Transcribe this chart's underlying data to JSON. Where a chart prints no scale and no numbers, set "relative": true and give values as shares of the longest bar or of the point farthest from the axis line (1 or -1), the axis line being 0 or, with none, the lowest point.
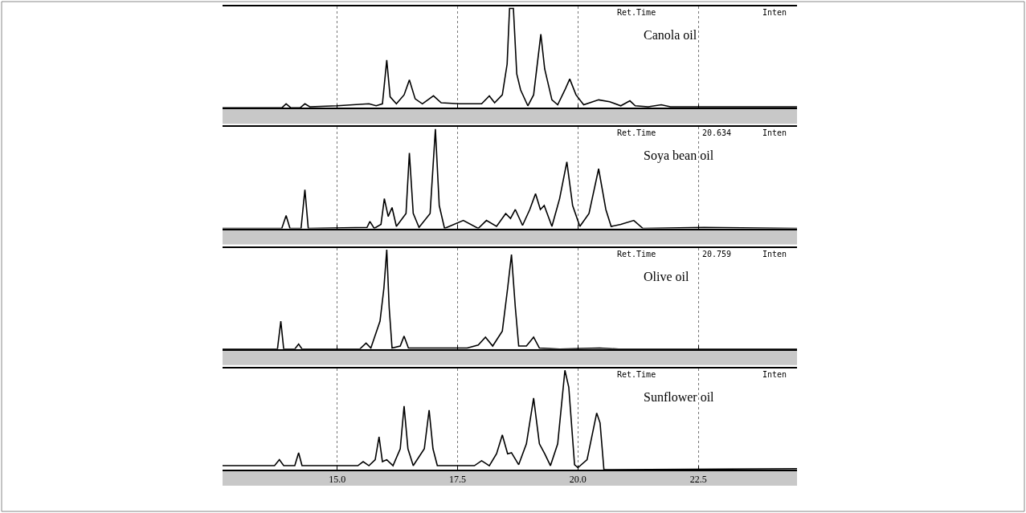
{
  "chart_data": [
    {
      "type": "line",
      "relative": true,
      "xlim": [
        12.62,
        24.55
      ],
      "xticks": [
        {
          "value": 15.0,
          "label": null
        },
        {
          "value": 17.5,
          "label": null
        },
        {
          "value": 20.0,
          "label": null
        },
        {
          "value": 22.5,
          "label": null
        }
      ],
      "tick_labels": false,
      "grid": "x",
      "legend": false,
      "marker": "none",
      "line_style": "solid",
      "annotations": [
        "Ret.Time",
        "Inten"
      ],
      "series": [
        {
          "name": "Canola oil",
          "color": "#000000",
          "x": [
            12.62,
            13.85,
            13.94,
            14.04,
            14.23,
            14.33,
            14.43,
            15.0,
            15.66,
            15.81,
            15.94,
            16.03,
            16.1,
            16.23,
            16.39,
            16.5,
            16.62,
            16.77,
            17.0,
            17.16,
            17.54,
            18.0,
            18.16,
            18.27,
            18.43,
            18.53,
            18.58,
            18.66,
            18.73,
            18.81,
            18.96,
            19.08,
            19.23,
            19.31,
            19.46,
            19.58,
            19.73,
            19.83,
            19.96,
            20.12,
            20.43,
            20.66,
            20.89,
            21.08,
            21.19,
            21.46,
            21.73,
            21.92,
            23.39,
            24.55
          ],
          "values": [
            0,
            0,
            0.04,
            0,
            0,
            0.04,
            0.01,
            0.02,
            0.04,
            0.02,
            0.04,
            0.48,
            0.11,
            0.04,
            0.13,
            0.28,
            0.09,
            0.04,
            0.12,
            0.05,
            0.04,
            0.04,
            0.12,
            0.05,
            0.13,
            0.44,
            1,
            1,
            0.34,
            0.18,
            0.02,
            0.13,
            0.74,
            0.39,
            0.08,
            0.03,
            0.18,
            0.29,
            0.13,
            0.03,
            0.08,
            0.06,
            0.02,
            0.07,
            0.02,
            0.01,
            0.03,
            0.01,
            0.01,
            0.01
          ]
        }
      ]
    },
    {
      "type": "line",
      "relative": true,
      "xlim": [
        12.62,
        24.55
      ],
      "xticks": [
        {
          "value": 15.0,
          "label": null
        },
        {
          "value": 17.5,
          "label": null
        },
        {
          "value": 20.0,
          "label": null
        },
        {
          "value": 22.5,
          "label": null
        }
      ],
      "tick_labels": false,
      "grid": "x",
      "legend": false,
      "marker": "none",
      "line_style": "solid",
      "annotations": [
        "Ret.Time",
        "20.634",
        "Inten"
      ],
      "series": [
        {
          "name": "Soya bean oil",
          "color": "#000000",
          "x": [
            12.62,
            13.85,
            13.94,
            14.02,
            14.25,
            14.33,
            14.4,
            15.62,
            15.68,
            15.77,
            15.91,
            15.98,
            16.06,
            16.14,
            16.23,
            16.43,
            16.5,
            16.58,
            16.7,
            16.93,
            17.04,
            17.12,
            17.23,
            17.62,
            17.93,
            18.1,
            18.31,
            18.5,
            18.6,
            18.7,
            18.85,
            19.0,
            19.12,
            19.22,
            19.3,
            19.46,
            19.62,
            19.77,
            19.89,
            20.04,
            20.23,
            20.43,
            20.58,
            20.69,
            20.89,
            21.16,
            21.35,
            22.62,
            24.55
          ],
          "values": [
            0,
            0,
            0.13,
            0,
            0,
            0.39,
            0,
            0.01,
            0.07,
            0,
            0.04,
            0.3,
            0.12,
            0.21,
            0.02,
            0.15,
            0.76,
            0.15,
            0.01,
            0.15,
            1,
            0.23,
            0,
            0.08,
            0,
            0.08,
            0.02,
            0.15,
            0.1,
            0.19,
            0.03,
            0.19,
            0.35,
            0.19,
            0.23,
            0.02,
            0.3,
            0.67,
            0.23,
            0.02,
            0.15,
            0.6,
            0.19,
            0.02,
            0.04,
            0.08,
            0,
            0.01,
            0
          ]
        }
      ]
    },
    {
      "type": "line",
      "relative": true,
      "xlim": [
        12.62,
        24.55
      ],
      "xticks": [
        {
          "value": 15.0,
          "label": null
        },
        {
          "value": 17.5,
          "label": null
        },
        {
          "value": 20.0,
          "label": null
        },
        {
          "value": 22.5,
          "label": null
        }
      ],
      "tick_labels": false,
      "grid": "x",
      "legend": false,
      "marker": "none",
      "line_style": "solid",
      "annotations": [
        "Ret.Time",
        "20.759",
        "Inten"
      ],
      "series": [
        {
          "name": "Olive oil",
          "color": "#000000",
          "x": [
            12.62,
            13.76,
            13.83,
            13.89,
            14.12,
            14.2,
            14.27,
            15.47,
            15.6,
            15.7,
            15.89,
            15.97,
            16.03,
            16.08,
            16.14,
            16.31,
            16.39,
            16.48,
            16.85,
            17.7,
            17.93,
            18.08,
            18.23,
            18.43,
            18.54,
            18.62,
            18.7,
            18.77,
            18.93,
            19.08,
            19.2,
            19.62,
            20.45,
            20.85,
            24.55
          ],
          "values": [
            0,
            0,
            0.28,
            0,
            0,
            0.05,
            0,
            0,
            0.06,
            0.01,
            0.28,
            0.61,
            1,
            0.42,
            0.01,
            0.03,
            0.13,
            0.01,
            0.01,
            0.01,
            0.04,
            0.12,
            0.03,
            0.18,
            0.61,
            0.95,
            0.42,
            0.03,
            0.03,
            0.12,
            0.01,
            0,
            0.01,
            0,
            0
          ]
        }
      ]
    },
    {
      "type": "line",
      "relative": true,
      "xlim": [
        12.62,
        24.55
      ],
      "xticks": [
        {
          "value": 15.0,
          "label": "15.0"
        },
        {
          "value": 17.5,
          "label": "17.5"
        },
        {
          "value": 20.0,
          "label": "20.0"
        },
        {
          "value": 22.5,
          "label": "22.5"
        }
      ],
      "tick_labels": "x",
      "grid": "x",
      "legend": false,
      "marker": "none",
      "line_style": "solid",
      "annotations": [
        "Ret.Time",
        "Inten"
      ],
      "series": [
        {
          "name": "Sunflower oil",
          "color": "#000000",
          "x": [
            12.62,
            13.7,
            13.8,
            13.89,
            14.12,
            14.2,
            14.27,
            14.93,
            15.43,
            15.54,
            15.66,
            15.79,
            15.87,
            15.94,
            16.03,
            16.16,
            16.31,
            16.39,
            16.47,
            16.58,
            16.81,
            16.91,
            16.99,
            17.08,
            17.85,
            18.0,
            18.16,
            18.31,
            18.43,
            18.54,
            18.62,
            18.77,
            18.93,
            19.08,
            19.2,
            19.31,
            19.43,
            19.58,
            19.73,
            19.81,
            19.93,
            20.0,
            20.19,
            20.39,
            20.46,
            20.54,
            24.55
          ],
          "values": [
            0.04,
            0.04,
            0.1,
            0.04,
            0.04,
            0.17,
            0.04,
            0.04,
            0.04,
            0.08,
            0.04,
            0.1,
            0.33,
            0.08,
            0.1,
            0.04,
            0.21,
            0.64,
            0.21,
            0.04,
            0.21,
            0.6,
            0.21,
            0.04,
            0.04,
            0.09,
            0.04,
            0.16,
            0.35,
            0.16,
            0.17,
            0.05,
            0.26,
            0.72,
            0.26,
            0.16,
            0.04,
            0.26,
            1.0,
            0.83,
            0.05,
            0.02,
            0.1,
            0.57,
            0.47,
            0,
            0.01
          ]
        }
      ]
    }
  ]
}
